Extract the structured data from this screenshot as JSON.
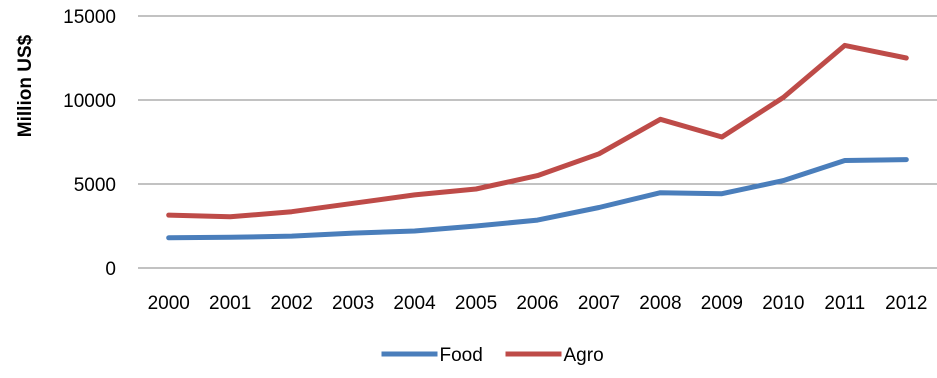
{
  "chart_data": {
    "type": "line",
    "title": "",
    "xlabel": "",
    "ylabel": "Million US$",
    "categories": [
      "2000",
      "2001",
      "2002",
      "2003",
      "2004",
      "2005",
      "2006",
      "2007",
      "2008",
      "2009",
      "2010",
      "2011",
      "2012"
    ],
    "series": [
      {
        "name": "Food",
        "color": "#4a7ebb",
        "values": [
          1800,
          1830,
          1900,
          2080,
          2200,
          2500,
          2850,
          3600,
          4480,
          4420,
          5200,
          6400,
          6450
        ]
      },
      {
        "name": "Agro",
        "color": "#be4b48",
        "values": [
          3150,
          3050,
          3350,
          3850,
          4350,
          4700,
          5500,
          6800,
          8850,
          7800,
          10150,
          13250,
          12500
        ]
      }
    ],
    "ylim": [
      0,
      15000
    ],
    "yticks": [
      "0",
      "5000",
      "10000",
      "15000"
    ],
    "grid": true,
    "legend_position": "bottom"
  }
}
